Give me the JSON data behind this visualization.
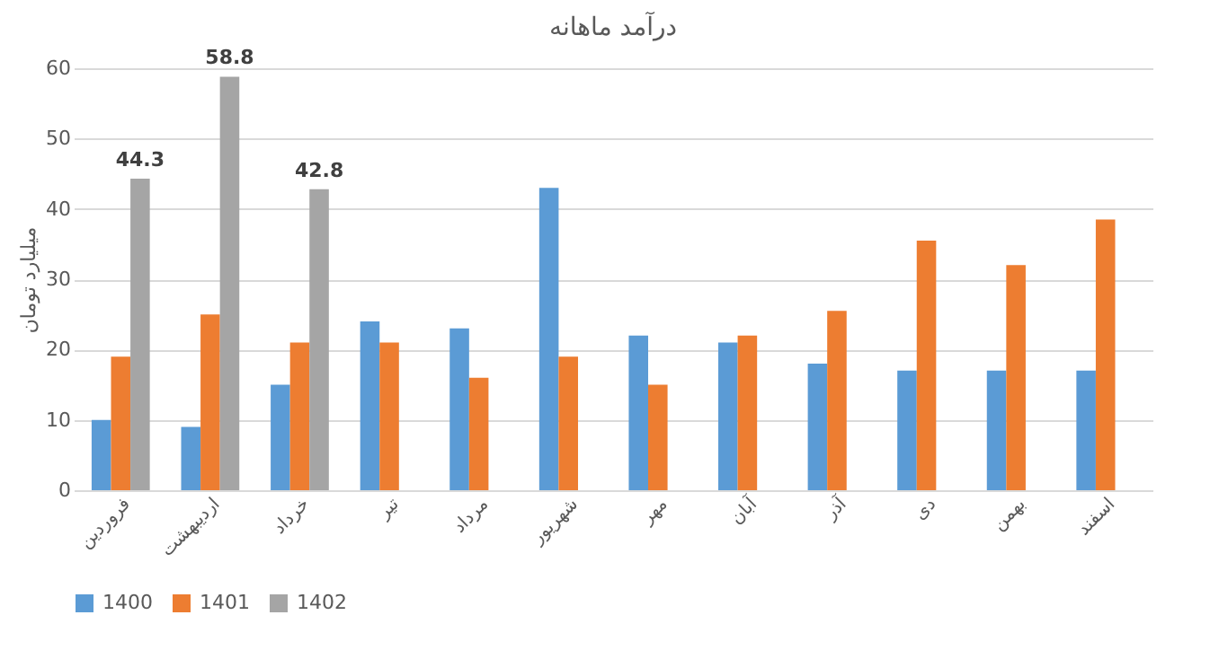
{
  "chart_data": {
    "type": "bar",
    "title": "درآمد ماهانه",
    "ylabel": "میلیارد تومان",
    "categories": [
      "فروردین",
      "اردیبهشت",
      "خرداد",
      "تیر",
      "مرداد",
      "شهریور",
      "مهر",
      "آبان",
      "آذر",
      "دی",
      "بهمن",
      "اسفند"
    ],
    "series": [
      {
        "name": "1400",
        "color": "#5b9bd5",
        "values": [
          10,
          9,
          15,
          24,
          23,
          43,
          22,
          21,
          18,
          17,
          17,
          17
        ]
      },
      {
        "name": "1401",
        "color": "#ed7d31",
        "values": [
          19,
          25,
          21,
          21,
          16,
          19,
          15,
          22,
          25.5,
          35.5,
          32,
          38.5
        ]
      },
      {
        "name": "1402",
        "color": "#a5a5a5",
        "values": [
          44.3,
          58.8,
          42.8,
          null,
          null,
          null,
          null,
          null,
          null,
          null,
          null,
          null
        ],
        "value_labels": [
          "44.3",
          "58.8",
          "42.8",
          null,
          null,
          null,
          null,
          null,
          null,
          null,
          null,
          null
        ]
      }
    ],
    "ylim": [
      0,
      60
    ],
    "yticks": [
      0,
      10,
      20,
      30,
      40,
      50,
      60
    ],
    "grid": "y",
    "legend": "bottom"
  }
}
